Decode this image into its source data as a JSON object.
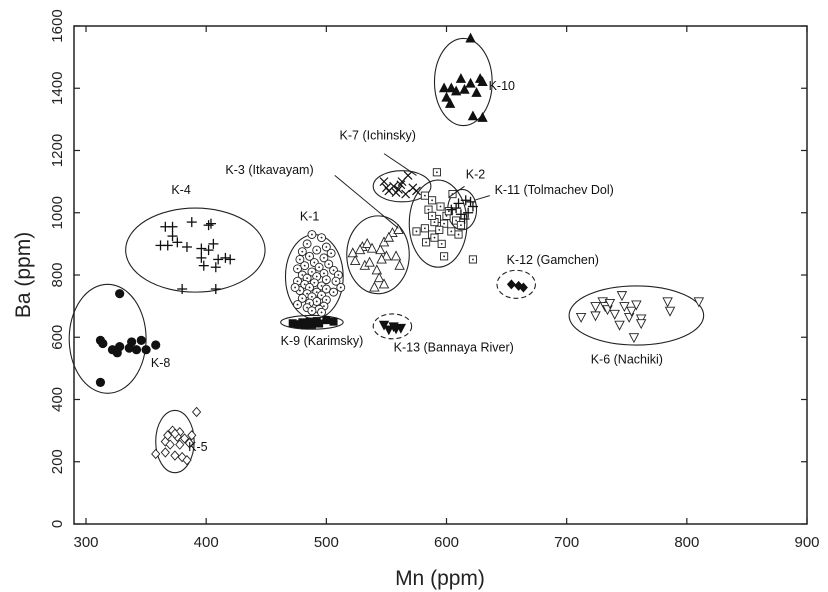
{
  "chart_data": {
    "type": "scatter",
    "title": "",
    "xlabel": "Mn (ppm)",
    "ylabel": "Ba (ppm)",
    "xlim": [
      290,
      900
    ],
    "ylim": [
      0,
      1600
    ],
    "xticks": [
      300,
      400,
      500,
      600,
      700,
      800,
      900
    ],
    "yticks": [
      0,
      200,
      400,
      600,
      800,
      1000,
      1200,
      1400,
      1600
    ],
    "grid": false,
    "legend": "none",
    "groups": [
      {
        "name": "K-10",
        "marker": "triangle-up-filled",
        "points": [
          [
            620,
            1560
          ],
          [
            612,
            1430
          ],
          [
            628,
            1430
          ],
          [
            630,
            1420
          ],
          [
            620,
            1415
          ],
          [
            604,
            1400
          ],
          [
            598,
            1400
          ],
          [
            615,
            1395
          ],
          [
            608,
            1390
          ],
          [
            625,
            1385
          ],
          [
            600,
            1370
          ],
          [
            603,
            1350
          ],
          [
            622,
            1310
          ],
          [
            630,
            1305
          ]
        ],
        "ellipse": {
          "cx": 614,
          "cy": 1420,
          "rx": 24,
          "ry": 140,
          "rot": 0,
          "dashed": false
        },
        "label": {
          "text": "K-10",
          "x": 635,
          "y": 1395
        },
        "leader": null
      },
      {
        "name": "K-7 (Ichinsky)",
        "marker": "x",
        "points": [
          [
            548,
            1100
          ],
          [
            556,
            1085
          ],
          [
            562,
            1090
          ],
          [
            568,
            1120
          ],
          [
            552,
            1070
          ],
          [
            560,
            1075
          ],
          [
            572,
            1080
          ],
          [
            566,
            1060
          ],
          [
            558,
            1065
          ],
          [
            575,
            1070
          ],
          [
            550,
            1080
          ],
          [
            563,
            1100
          ]
        ],
        "ellipse": {
          "cx": 563,
          "cy": 1085,
          "rx": 24,
          "ry": 50,
          "rot": 0,
          "dashed": false
        },
        "label": {
          "text": "K-7 (Ichinsky)",
          "x": 511,
          "y": 1235
        },
        "leader": [
          [
            548,
            1190
          ],
          [
            575,
            1120
          ]
        ]
      },
      {
        "name": "K-2",
        "marker": "square-dot",
        "points": [
          [
            592,
            1130
          ],
          [
            582,
            1055
          ],
          [
            588,
            1040
          ],
          [
            605,
            1060
          ],
          [
            595,
            1020
          ],
          [
            585,
            1010
          ],
          [
            600,
            990
          ],
          [
            592,
            980
          ],
          [
            608,
            975
          ],
          [
            590,
            970
          ],
          [
            598,
            965
          ],
          [
            612,
            960
          ],
          [
            582,
            950
          ],
          [
            594,
            945
          ],
          [
            604,
            940
          ],
          [
            588,
            930
          ],
          [
            590,
            920
          ],
          [
            583,
            905
          ],
          [
            596,
            900
          ],
          [
            575,
            940
          ],
          [
            610,
            930
          ],
          [
            598,
            860
          ],
          [
            622,
            850
          ],
          [
            588,
            990
          ],
          [
            602,
            1005
          ]
        ],
        "ellipse": {
          "cx": 593,
          "cy": 965,
          "rx": 24,
          "ry": 140,
          "rot": 0,
          "dashed": false
        },
        "label": {
          "text": "K-2",
          "x": 616,
          "y": 1110
        },
        "leader": [
          [
            615,
            1085
          ],
          [
            602,
            1050
          ]
        ]
      },
      {
        "name": "K-11 (Tolmachev Dol)",
        "marker": "plus",
        "points": [
          [
            604,
            1010
          ],
          [
            610,
            1030
          ],
          [
            616,
            1040
          ],
          [
            620,
            1035
          ],
          [
            612,
            995
          ],
          [
            618,
            1000
          ],
          [
            608,
            1015
          ],
          [
            622,
            1020
          ],
          [
            615,
            980
          ]
        ],
        "ellipse": {
          "cx": 613,
          "cy": 1010,
          "rx": 12,
          "ry": 65,
          "rot": 0,
          "dashed": false
        },
        "label": {
          "text": "K-11 (Tolmachev Dol)",
          "x": 640,
          "y": 1060
        },
        "leader": [
          [
            636,
            1055
          ],
          [
            623,
            1040
          ]
        ]
      },
      {
        "name": "K-3 (Itkavayam)",
        "marker": "triangle-up-open",
        "points": [
          [
            522,
            870
          ],
          [
            530,
            890
          ],
          [
            534,
            900
          ],
          [
            538,
            885
          ],
          [
            545,
            880
          ],
          [
            548,
            905
          ],
          [
            555,
            935
          ],
          [
            560,
            945
          ],
          [
            552,
            920
          ],
          [
            524,
            845
          ],
          [
            532,
            830
          ],
          [
            542,
            815
          ],
          [
            544,
            790
          ],
          [
            548,
            770
          ],
          [
            540,
            760
          ],
          [
            558,
            860
          ],
          [
            536,
            840
          ],
          [
            550,
            860
          ],
          [
            561,
            830
          ],
          [
            546,
            850
          ],
          [
            528,
            880
          ]
        ],
        "ellipse": {
          "cx": 543,
          "cy": 865,
          "rx": 26,
          "ry": 125,
          "rot": 0,
          "dashed": false
        },
        "label": {
          "text": "K-3 (Itkavayam)",
          "x": 416,
          "y": 1125
        },
        "leader": [
          [
            507,
            1120
          ],
          [
            560,
            950
          ]
        ]
      },
      {
        "name": "K-1",
        "marker": "circle-dot",
        "points": [
          [
            488,
            930
          ],
          [
            496,
            920
          ],
          [
            484,
            900
          ],
          [
            500,
            890
          ],
          [
            492,
            880
          ],
          [
            480,
            875
          ],
          [
            504,
            870
          ],
          [
            486,
            860
          ],
          [
            498,
            855
          ],
          [
            478,
            850
          ],
          [
            490,
            840
          ],
          [
            502,
            835
          ],
          [
            482,
            830
          ],
          [
            494,
            825
          ],
          [
            476,
            820
          ],
          [
            506,
            815
          ],
          [
            488,
            810
          ],
          [
            498,
            805
          ],
          [
            480,
            800
          ],
          [
            510,
            800
          ],
          [
            492,
            795
          ],
          [
            484,
            790
          ],
          [
            500,
            785
          ],
          [
            476,
            780
          ],
          [
            508,
            780
          ],
          [
            490,
            775
          ],
          [
            482,
            770
          ],
          [
            496,
            765
          ],
          [
            486,
            760
          ],
          [
            500,
            755
          ],
          [
            478,
            750
          ],
          [
            492,
            745
          ],
          [
            506,
            745
          ],
          [
            484,
            740
          ],
          [
            496,
            735
          ],
          [
            488,
            730
          ],
          [
            480,
            725
          ],
          [
            500,
            720
          ],
          [
            492,
            715
          ],
          [
            486,
            710
          ],
          [
            476,
            705
          ],
          [
            498,
            700
          ],
          [
            484,
            695
          ],
          [
            494,
            690
          ],
          [
            488,
            685
          ],
          [
            496,
            680
          ],
          [
            474,
            760
          ],
          [
            512,
            760
          ]
        ],
        "ellipse": {
          "cx": 490,
          "cy": 795,
          "rx": 24,
          "ry": 135,
          "rot": 0,
          "dashed": false
        },
        "label": {
          "text": "K-1",
          "x": 478,
          "y": 975
        },
        "leader": null
      },
      {
        "name": "K-4",
        "marker": "plus",
        "points": [
          [
            366,
            955
          ],
          [
            372,
            955
          ],
          [
            388,
            970
          ],
          [
            402,
            960
          ],
          [
            404,
            965
          ],
          [
            362,
            895
          ],
          [
            368,
            895
          ],
          [
            376,
            905
          ],
          [
            384,
            890
          ],
          [
            396,
            885
          ],
          [
            402,
            880
          ],
          [
            406,
            900
          ],
          [
            396,
            855
          ],
          [
            410,
            850
          ],
          [
            416,
            855
          ],
          [
            420,
            850
          ],
          [
            398,
            830
          ],
          [
            408,
            825
          ],
          [
            380,
            755
          ],
          [
            408,
            755
          ],
          [
            372,
            925
          ]
        ],
        "ellipse": {
          "cx": 391,
          "cy": 880,
          "rx": 58,
          "ry": 135,
          "rot": 0,
          "dashed": false
        },
        "label": {
          "text": "K-4",
          "x": 371,
          "y": 1060
        },
        "leader": null
      },
      {
        "name": "K-8",
        "marker": "circle-filled",
        "points": [
          [
            328,
            740
          ],
          [
            312,
            590
          ],
          [
            314,
            580
          ],
          [
            338,
            585
          ],
          [
            346,
            590
          ],
          [
            328,
            570
          ],
          [
            336,
            565
          ],
          [
            322,
            560
          ],
          [
            342,
            560
          ],
          [
            350,
            560
          ],
          [
            358,
            575
          ],
          [
            326,
            550
          ],
          [
            312,
            455
          ]
        ],
        "ellipse": {
          "cx": 318,
          "cy": 595,
          "rx": 32,
          "ry": 175,
          "rot": 0,
          "dashed": false
        },
        "label": {
          "text": "K-8",
          "x": 354,
          "y": 505
        },
        "leader": null
      },
      {
        "name": "K-9 (Karimsky)",
        "marker": "square-filled",
        "points": [
          [
            472,
            645
          ],
          [
            480,
            648
          ],
          [
            486,
            650
          ],
          [
            492,
            652
          ],
          [
            500,
            655
          ],
          [
            488,
            640
          ],
          [
            482,
            638
          ],
          [
            476,
            642
          ],
          [
            494,
            644
          ],
          [
            506,
            650
          ]
        ],
        "ellipse": {
          "cx": 488,
          "cy": 648,
          "rx": 26,
          "ry": 22,
          "rot": 0,
          "dashed": false
        },
        "label": {
          "text": "K-9 (Karimsky)",
          "x": 462,
          "y": 575
        },
        "leader": null
      },
      {
        "name": "K-13 (Bannaya River)",
        "marker": "triangle-down-filled",
        "points": [
          [
            548,
            640
          ],
          [
            556,
            635
          ],
          [
            562,
            630
          ],
          [
            552,
            625
          ],
          [
            558,
            628
          ]
        ],
        "ellipse": {
          "cx": 555,
          "cy": 635,
          "rx": 16,
          "ry": 40,
          "rot": 0,
          "dashed": true
        },
        "label": {
          "text": "K-13 (Bannaya River)",
          "x": 556,
          "y": 555
        },
        "leader": null
      },
      {
        "name": "K-12 (Gamchen)",
        "marker": "diamond-filled",
        "points": [
          [
            654,
            770
          ],
          [
            660,
            765
          ],
          [
            664,
            760
          ]
        ],
        "ellipse": {
          "cx": 658,
          "cy": 770,
          "rx": 16,
          "ry": 45,
          "rot": 0,
          "dashed": true
        },
        "label": {
          "text": "K-12 (Gamchen)",
          "x": 650,
          "y": 835
        },
        "leader": null
      },
      {
        "name": "K-6 (Nachiki)",
        "marker": "triangle-down-open",
        "points": [
          [
            712,
            665
          ],
          [
            724,
            670
          ],
          [
            730,
            715
          ],
          [
            732,
            700
          ],
          [
            734,
            690
          ],
          [
            736,
            710
          ],
          [
            744,
            640
          ],
          [
            746,
            735
          ],
          [
            748,
            700
          ],
          [
            752,
            665
          ],
          [
            754,
            685
          ],
          [
            758,
            705
          ],
          [
            762,
            660
          ],
          [
            756,
            600
          ],
          [
            762,
            645
          ],
          [
            784,
            715
          ],
          [
            786,
            685
          ],
          [
            810,
            715
          ],
          [
            740,
            675
          ],
          [
            724,
            700
          ]
        ],
        "ellipse": {
          "cx": 758,
          "cy": 670,
          "rx": 56,
          "ry": 95,
          "rot": 0,
          "dashed": false
        },
        "label": {
          "text": "K-6 (Nachiki)",
          "x": 720,
          "y": 515
        },
        "leader": null
      },
      {
        "name": "K-5",
        "marker": "diamond-open",
        "points": [
          [
            372,
            300
          ],
          [
            378,
            295
          ],
          [
            376,
            280
          ],
          [
            374,
            290
          ],
          [
            366,
            265
          ],
          [
            368,
            285
          ],
          [
            382,
            275
          ],
          [
            370,
            255
          ],
          [
            378,
            255
          ],
          [
            386,
            260
          ],
          [
            388,
            285
          ],
          [
            366,
            230
          ],
          [
            374,
            220
          ],
          [
            380,
            215
          ],
          [
            384,
            205
          ],
          [
            358,
            225
          ],
          [
            392,
            360
          ]
        ],
        "ellipse": {
          "cx": 374,
          "cy": 265,
          "rx": 16,
          "ry": 100,
          "rot": 0,
          "dashed": false
        },
        "label": {
          "text": "K-5",
          "x": 385,
          "y": 235
        },
        "leader": null
      }
    ]
  }
}
